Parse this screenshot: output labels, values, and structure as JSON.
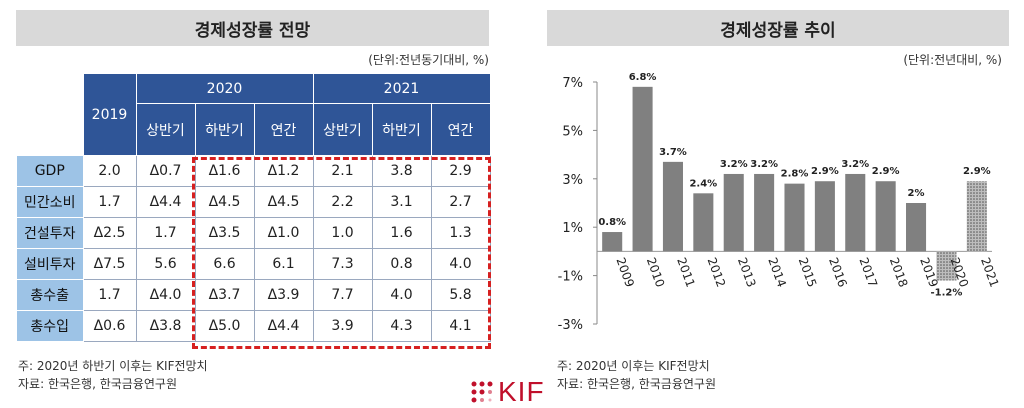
{
  "left_panel": {
    "title": "경제성장률 전망",
    "unit": "(단위:전년동기대비, %)",
    "header_2019": "2019",
    "header_2020": "2020",
    "header_2021": "2021",
    "sub_headers": [
      "상반기",
      "하반기",
      "연간",
      "상반기",
      "하반기",
      "연간"
    ],
    "rows": [
      {
        "label": "GDP",
        "values": [
          "2.0",
          "Δ0.7",
          "Δ1.6",
          "Δ1.2",
          "2.1",
          "3.8",
          "2.9"
        ]
      },
      {
        "label": "민간소비",
        "values": [
          "1.7",
          "Δ4.4",
          "Δ4.5",
          "Δ4.5",
          "2.2",
          "3.1",
          "2.7"
        ]
      },
      {
        "label": "건설투자",
        "values": [
          "Δ2.5",
          "1.7",
          "Δ3.5",
          "Δ1.0",
          "1.0",
          "1.6",
          "1.3"
        ]
      },
      {
        "label": "설비투자",
        "values": [
          "Δ7.5",
          "5.6",
          "6.6",
          "6.1",
          "7.3",
          "0.8",
          "4.0"
        ]
      },
      {
        "label": "총수출",
        "values": [
          "1.7",
          "Δ4.0",
          "Δ3.7",
          "Δ3.9",
          "7.7",
          "4.0",
          "5.8"
        ]
      },
      {
        "label": "총수입",
        "values": [
          "Δ0.6",
          "Δ3.8",
          "Δ5.0",
          "Δ4.4",
          "3.9",
          "4.3",
          "4.1"
        ]
      }
    ],
    "note_1": "주: 2020년 하반기 이후는 KIF전망치",
    "note_2": "자료: 한국은행, 한국금융연구원"
  },
  "right_panel": {
    "title": "경제성장률 추이",
    "unit": "(단위:전년대비, %)",
    "note_1": "주: 2020년 이후는 KIF전망치",
    "note_2": "자료: 한국은행, 한국금융연구원"
  },
  "logo_text": "KIF",
  "colors": {
    "header_blue": "#2f5597",
    "row_label_blue": "#9dc3e6",
    "bar_gray": "#808080",
    "highlight_red": "#d62020"
  },
  "chart_data": {
    "type": "bar",
    "categories": [
      "2009",
      "2010",
      "2011",
      "2012",
      "2013",
      "2014",
      "2015",
      "2016",
      "2017",
      "2018",
      "2019",
      "2020",
      "2021"
    ],
    "values": [
      0.8,
      6.8,
      3.7,
      2.4,
      3.2,
      3.2,
      2.8,
      2.9,
      3.2,
      2.9,
      2.0,
      -1.2,
      2.9
    ],
    "data_labels": [
      "0.8%",
      "6.8%",
      "3.7%",
      "2.4%",
      "3.2%",
      "3.2%",
      "2.8%",
      "2.9%",
      "3.2%",
      "2.9%",
      "2%",
      "-1.2%",
      "2.9%"
    ],
    "forecast_categories": [
      "2020",
      "2021"
    ],
    "ylim": [
      -3,
      7
    ],
    "yticks": [
      7,
      5,
      3,
      1,
      -1,
      -3
    ],
    "ytick_labels": [
      "7%",
      "5%",
      "3%",
      "1%",
      "-1%",
      "-3%"
    ],
    "grid": false
  }
}
